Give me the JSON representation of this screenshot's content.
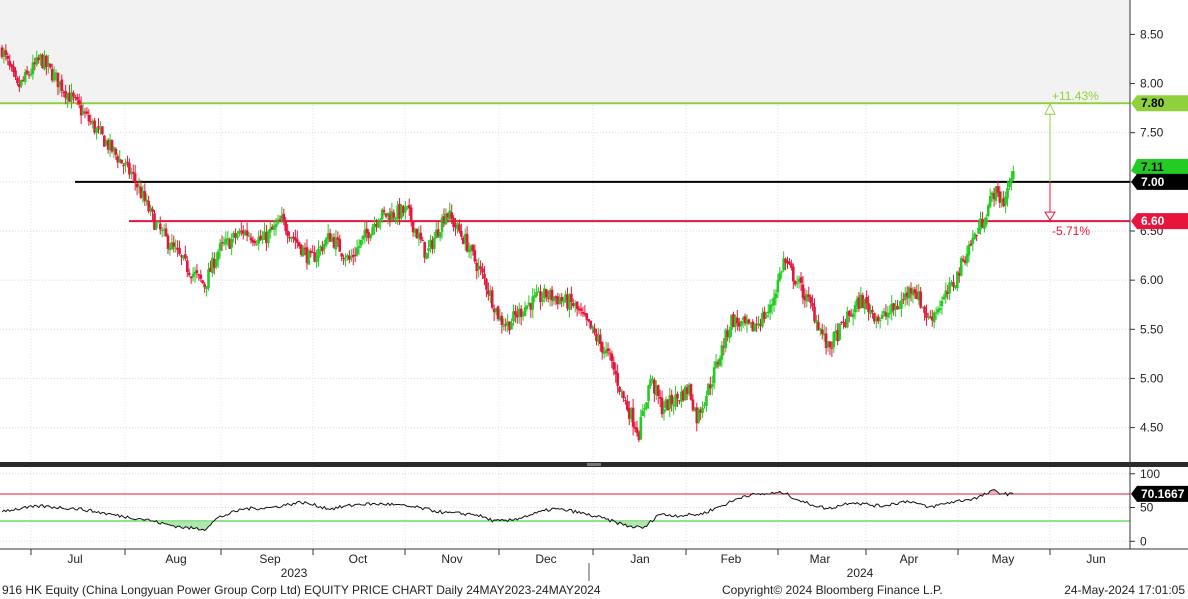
{
  "chart_data": {
    "type": "candlestick",
    "footer": {
      "title": "916 HK Equity (China Longyuan Power Group Corp Ltd) EQUITY PRICE CHART  Daily 24MAY2023-24MAY2024",
      "copyright": "Copyright© 2024 Bloomberg Finance L.P.",
      "timestamp": "24-May-2024 17:01:05"
    },
    "x_axis": {
      "months": [
        "Jul",
        "Aug",
        "Sep",
        "Oct",
        "Nov",
        "Dec",
        "Jan",
        "Feb",
        "Mar",
        "Apr",
        "May",
        "Jun"
      ],
      "years": [
        "2023",
        "2024"
      ]
    },
    "price_axis": {
      "range": [
        4.15,
        8.85
      ],
      "tick_labels": [
        "8.50",
        "8.00",
        "7.50",
        "7.00",
        "6.50",
        "6.00",
        "5.50",
        "5.00",
        "4.50"
      ]
    },
    "up_color": "#22cc22",
    "down_color": "#e8143c",
    "price_waypoints": [
      [
        0,
        8.35
      ],
      [
        8,
        7.95
      ],
      [
        20,
        8.25
      ],
      [
        40,
        7.75
      ],
      [
        58,
        7.3
      ],
      [
        68,
        7.05
      ],
      [
        80,
        6.55
      ],
      [
        95,
        6.15
      ],
      [
        105,
        5.95
      ],
      [
        112,
        6.3
      ],
      [
        125,
        6.5
      ],
      [
        135,
        6.4
      ],
      [
        145,
        6.6
      ],
      [
        160,
        6.2
      ],
      [
        170,
        6.45
      ],
      [
        180,
        6.2
      ],
      [
        195,
        6.65
      ],
      [
        210,
        6.7
      ],
      [
        220,
        6.25
      ],
      [
        230,
        6.7
      ],
      [
        240,
        6.4
      ],
      [
        250,
        6.0
      ],
      [
        258,
        5.6
      ],
      [
        262,
        5.55
      ],
      [
        272,
        5.75
      ],
      [
        282,
        5.85
      ],
      [
        290,
        5.8
      ],
      [
        296,
        5.75
      ],
      [
        305,
        5.5
      ],
      [
        315,
        5.2
      ],
      [
        322,
        4.8
      ],
      [
        330,
        4.45
      ],
      [
        336,
        5.0
      ],
      [
        342,
        4.7
      ],
      [
        350,
        4.8
      ],
      [
        356,
        4.9
      ],
      [
        360,
        4.6
      ],
      [
        368,
        5.0
      ],
      [
        378,
        5.6
      ],
      [
        388,
        5.5
      ],
      [
        398,
        5.7
      ],
      [
        405,
        6.2
      ],
      [
        413,
        5.95
      ],
      [
        420,
        5.7
      ],
      [
        428,
        5.3
      ],
      [
        436,
        5.55
      ],
      [
        445,
        5.8
      ],
      [
        455,
        5.6
      ],
      [
        465,
        5.75
      ],
      [
        472,
        5.95
      ],
      [
        480,
        5.6
      ],
      [
        488,
        5.8
      ],
      [
        494,
        6.0
      ],
      [
        500,
        6.3
      ],
      [
        508,
        6.6
      ],
      [
        514,
        6.9
      ],
      [
        519,
        6.8
      ],
      [
        524,
        7.11
      ]
    ],
    "horizontal_lines": [
      {
        "price": 7.8,
        "color": "#8ed13a",
        "label": "7.80"
      },
      {
        "price": 7.0,
        "color": "#000000",
        "label": "7.00"
      },
      {
        "price": 6.6,
        "color": "#e8143c",
        "label": "6.60"
      }
    ],
    "last_price": {
      "value": "7.11"
    },
    "annotations": {
      "upside": {
        "label": "+11.43%",
        "color": "#8ed13a"
      },
      "downside": {
        "label": "-5.71%",
        "color": "#e8143c"
      }
    },
    "rsi": {
      "range": [
        -10,
        110
      ],
      "tick_labels": [
        "100",
        "50",
        "0"
      ],
      "overbought": 70,
      "oversold": 30,
      "last": "70.1667",
      "waypoints": [
        [
          0,
          45
        ],
        [
          20,
          52
        ],
        [
          40,
          48
        ],
        [
          60,
          38
        ],
        [
          75,
          32
        ],
        [
          85,
          25
        ],
        [
          95,
          20
        ],
        [
          105,
          18
        ],
        [
          112,
          35
        ],
        [
          125,
          48
        ],
        [
          140,
          50
        ],
        [
          155,
          58
        ],
        [
          170,
          48
        ],
        [
          185,
          55
        ],
        [
          200,
          55
        ],
        [
          215,
          50
        ],
        [
          230,
          42
        ],
        [
          245,
          40
        ],
        [
          255,
          30
        ],
        [
          262,
          30
        ],
        [
          275,
          40
        ],
        [
          285,
          48
        ],
        [
          295,
          45
        ],
        [
          310,
          35
        ],
        [
          325,
          22
        ],
        [
          333,
          20
        ],
        [
          340,
          40
        ],
        [
          350,
          38
        ],
        [
          362,
          40
        ],
        [
          375,
          55
        ],
        [
          385,
          68
        ],
        [
          395,
          70
        ],
        [
          405,
          72
        ],
        [
          415,
          58
        ],
        [
          428,
          48
        ],
        [
          440,
          58
        ],
        [
          455,
          52
        ],
        [
          470,
          60
        ],
        [
          480,
          50
        ],
        [
          492,
          58
        ],
        [
          505,
          64
        ],
        [
          514,
          75
        ],
        [
          519,
          70
        ],
        [
          524,
          70.17
        ]
      ]
    }
  }
}
